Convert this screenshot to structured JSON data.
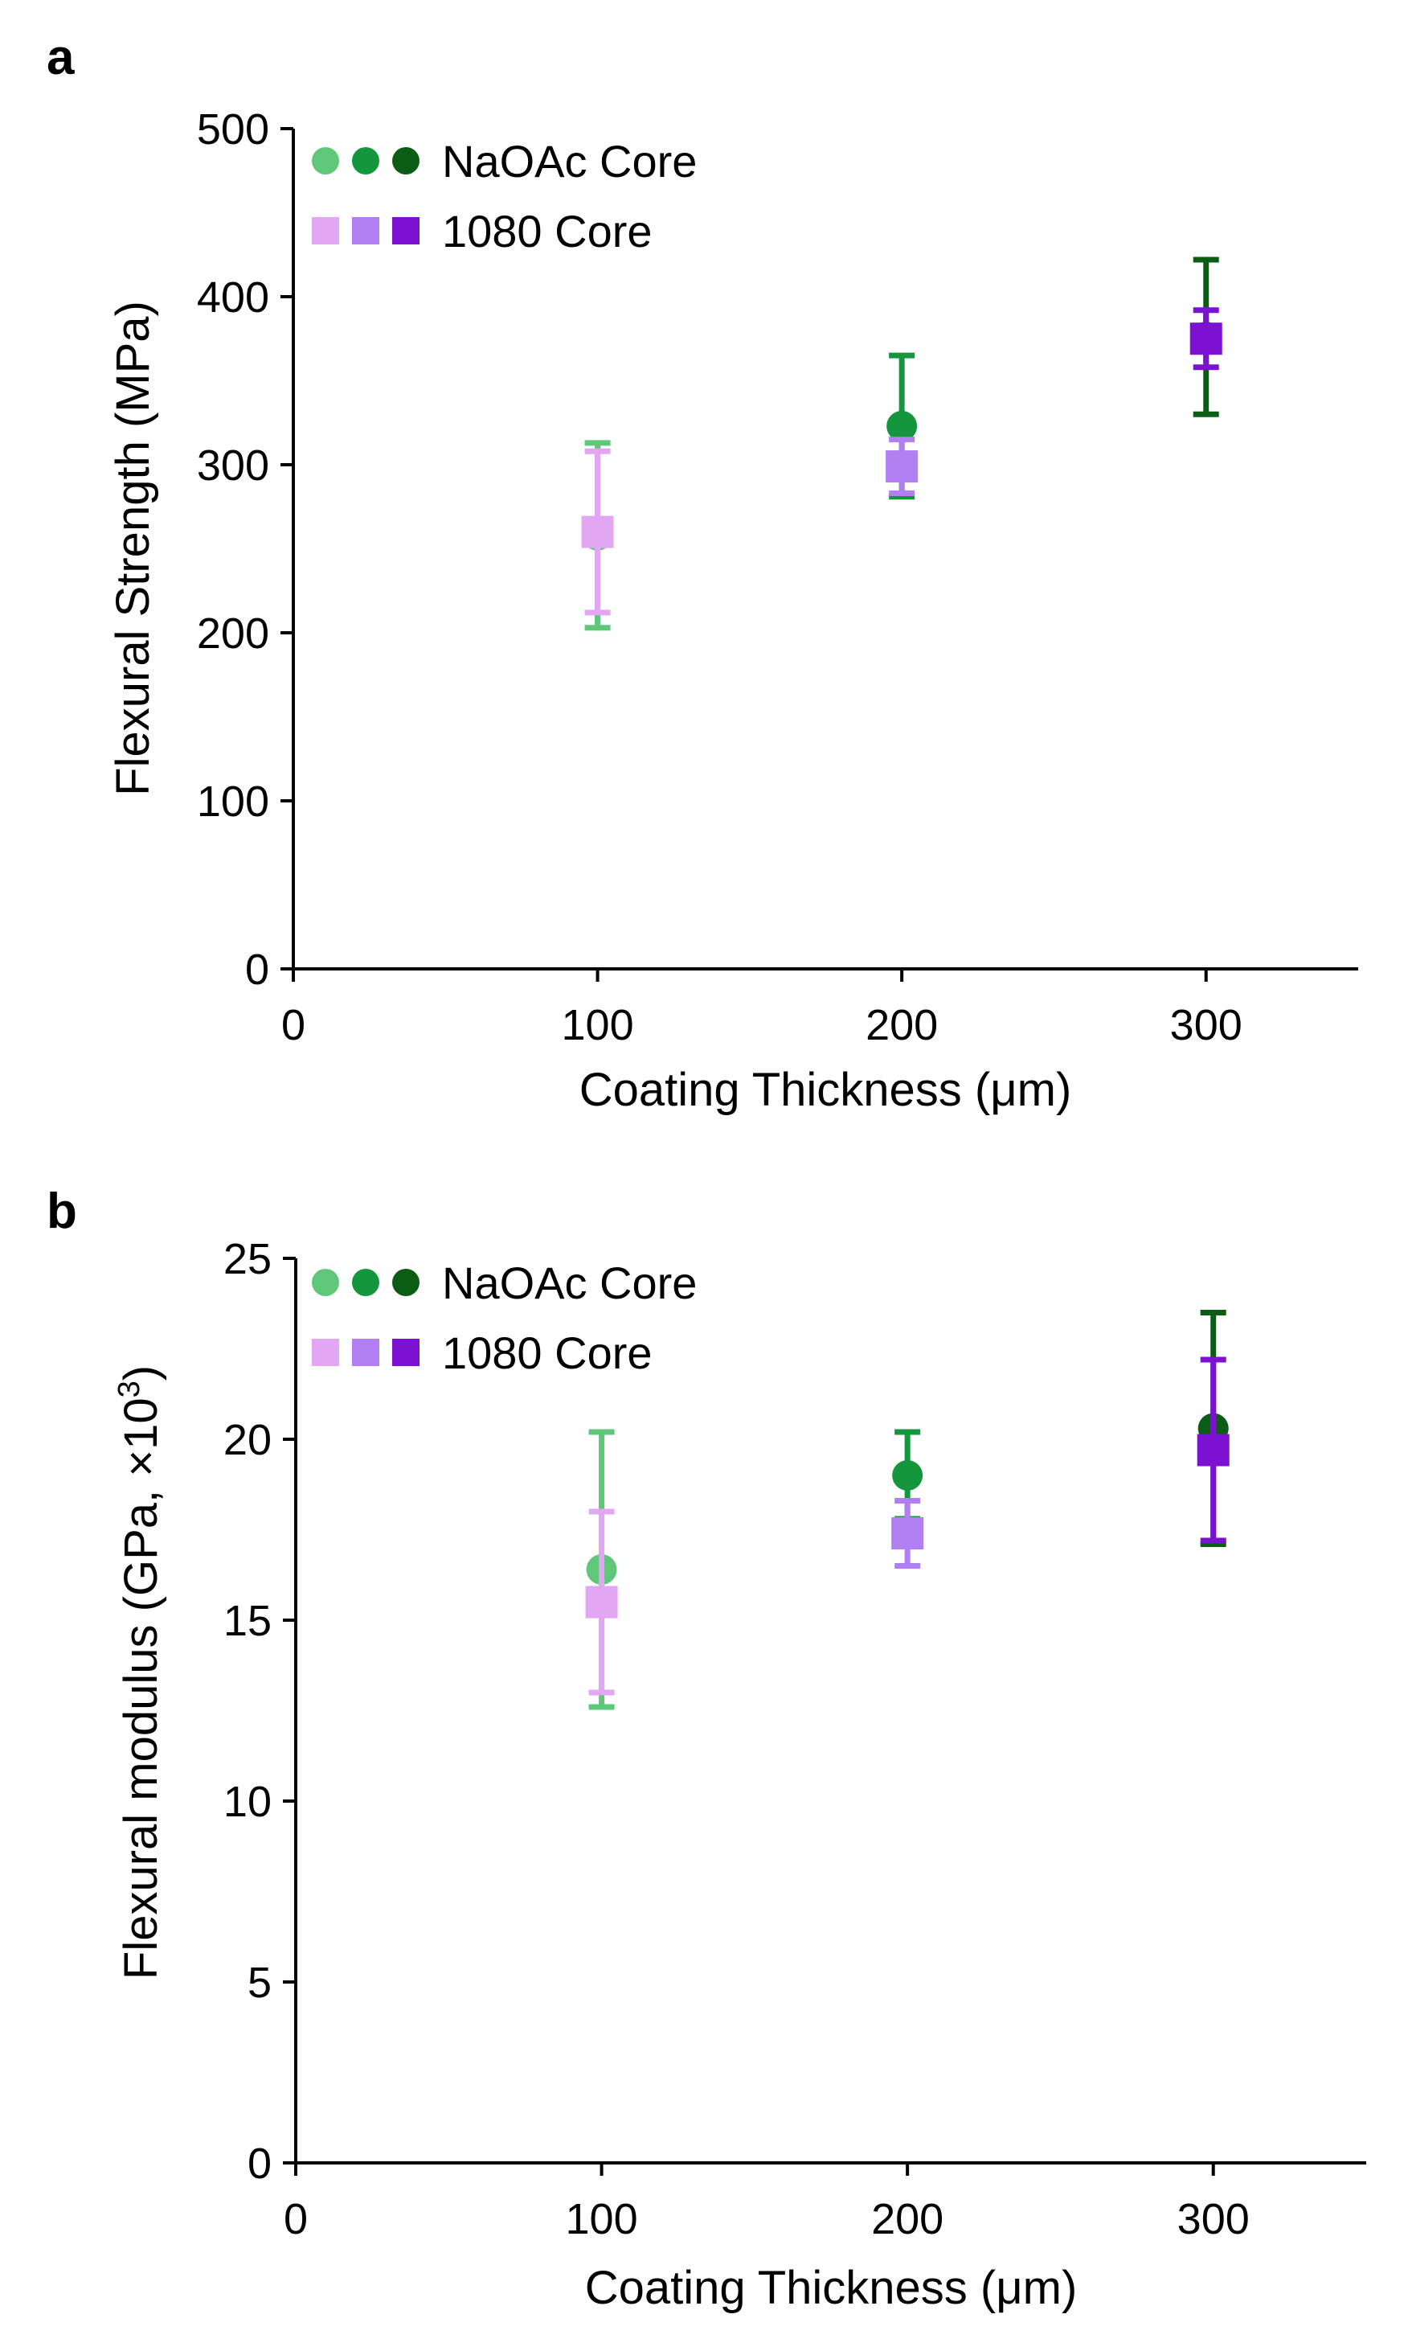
{
  "chart_data": [
    {
      "panel": "a",
      "type": "scatter",
      "xlabel": "Coating Thickness (μm)",
      "ylabel": "Flexural Strength (MPa)",
      "xlim": [
        0,
        350
      ],
      "ylim": [
        0,
        500
      ],
      "xticks": [
        0,
        100,
        200,
        300
      ],
      "yticks": [
        0,
        100,
        200,
        300,
        400,
        500
      ],
      "legend": [
        {
          "label": "NaOAc Core",
          "marker": "circle",
          "colors": [
            "#5ec779",
            "#13963c",
            "#0b5d16"
          ]
        },
        {
          "label": "1080 Core",
          "marker": "square",
          "colors": [
            "#e2a6f2",
            "#b17ff2",
            "#7c12d1"
          ]
        }
      ],
      "series": [
        {
          "name": "NaOAc Core",
          "marker": "circle",
          "points": [
            {
              "x": 100,
              "y": 258,
              "err": 55,
              "color": "#5ec779"
            },
            {
              "x": 200,
              "y": 323,
              "err": 42,
              "color": "#13963c"
            },
            {
              "x": 300,
              "y": 376,
              "err": 46,
              "color": "#0b5d16"
            }
          ]
        },
        {
          "name": "1080 Core",
          "marker": "square",
          "points": [
            {
              "x": 100,
              "y": 260,
              "err": 48,
              "color": "#e2a6f2"
            },
            {
              "x": 200,
              "y": 299,
              "err": 16,
              "color": "#b17ff2"
            },
            {
              "x": 300,
              "y": 375,
              "err": 17,
              "color": "#7c12d1"
            }
          ]
        }
      ]
    },
    {
      "panel": "b",
      "type": "scatter",
      "xlabel": "Coating Thickness (μm)",
      "ylabel": "Flexural modulus (GPa, ×10",
      "ylabel_superscript": "3",
      "ylabel_suffix": ")",
      "xlim": [
        0,
        350
      ],
      "ylim": [
        0,
        25
      ],
      "xticks": [
        0,
        100,
        200,
        300
      ],
      "yticks": [
        0,
        5,
        10,
        15,
        20,
        25
      ],
      "legend": [
        {
          "label": "NaOAc Core",
          "marker": "circle",
          "colors": [
            "#5ec779",
            "#13963c",
            "#0b5d16"
          ]
        },
        {
          "label": "1080 Core",
          "marker": "square",
          "colors": [
            "#e2a6f2",
            "#b17ff2",
            "#7c12d1"
          ]
        }
      ],
      "series": [
        {
          "name": "NaOAc Core",
          "marker": "circle",
          "points": [
            {
              "x": 100,
              "y": 16.4,
              "err": 3.8,
              "color": "#5ec779"
            },
            {
              "x": 200,
              "y": 19.0,
              "err": 1.2,
              "color": "#13963c"
            },
            {
              "x": 300,
              "y": 20.3,
              "err": 3.2,
              "color": "#0b5d16"
            }
          ]
        },
        {
          "name": "1080 Core",
          "marker": "square",
          "points": [
            {
              "x": 100,
              "y": 15.5,
              "err": 2.5,
              "color": "#e2a6f2"
            },
            {
              "x": 200,
              "y": 17.4,
              "err": 0.9,
              "color": "#b17ff2"
            },
            {
              "x": 300,
              "y": 19.7,
              "err": 2.5,
              "color": "#7c12d1"
            }
          ]
        }
      ]
    }
  ]
}
